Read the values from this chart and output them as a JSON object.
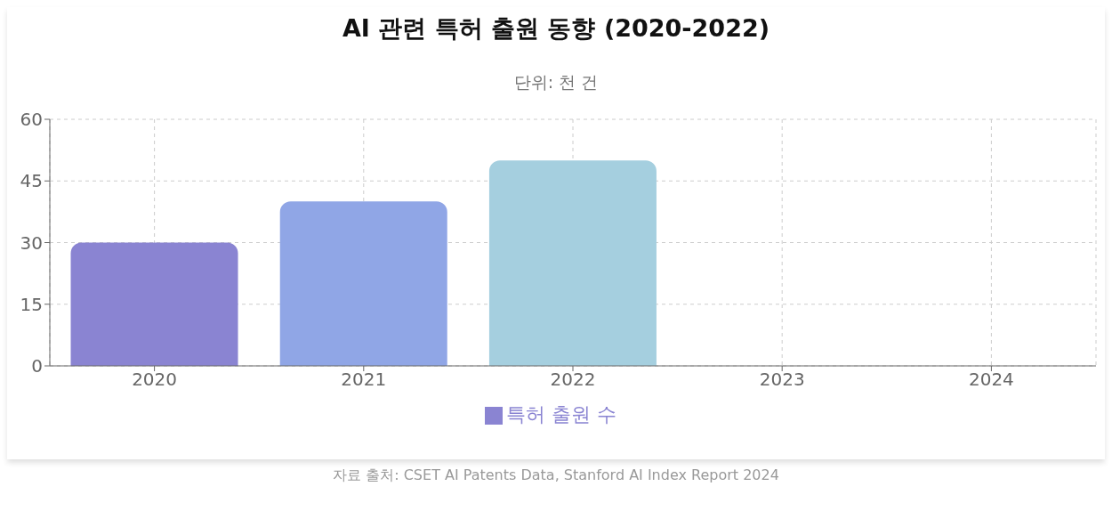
{
  "chart_data": {
    "type": "bar",
    "title": "AI 관련 특허 출원 동향 (2020-2022)",
    "subtitle": "단위: 천 건",
    "categories": [
      "2020",
      "2021",
      "2022",
      "2023",
      "2024"
    ],
    "series": [
      {
        "name": "특허 출원 수",
        "color": "#8a84d2",
        "colors": [
          "#8a84d2",
          "#90a6e6",
          "#a5cfdf",
          null,
          null
        ],
        "values": [
          30,
          40,
          50,
          null,
          null
        ]
      }
    ],
    "ylim": [
      0,
      60
    ],
    "yticks": [
      0,
      15,
      30,
      45,
      60
    ],
    "grid": true,
    "legend": "bottom",
    "annotations": [
      "자료 출처: CSET AI Patents Data, Stanford AI Index Report 2024"
    ]
  }
}
